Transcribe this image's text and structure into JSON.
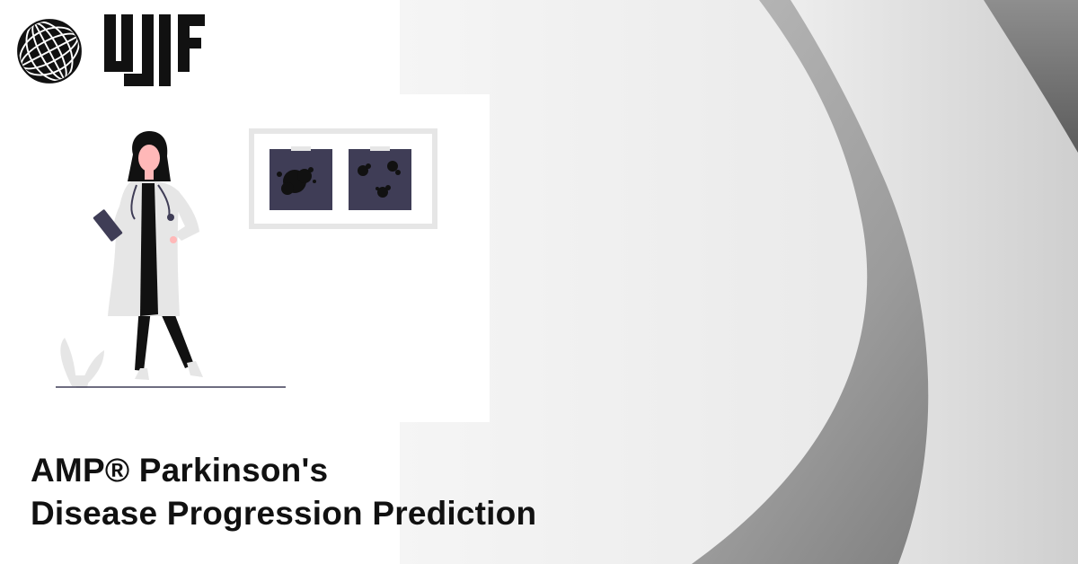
{
  "banner": {
    "title_line1": "AMP® Parkinson's",
    "title_line2": "Disease Progression Prediction"
  },
  "logos": {
    "primary": "globe-logo",
    "secondary": "ujf-logo"
  },
  "illustration": {
    "subject": "doctor-with-clipboard",
    "frame_contents": "two-xray-scans"
  },
  "colors": {
    "text": "#111111",
    "scan_fill": "#3f3d56",
    "frame": "#e6e6e6",
    "coat": "#e6e6e6",
    "skin": "#ffb8b8"
  }
}
